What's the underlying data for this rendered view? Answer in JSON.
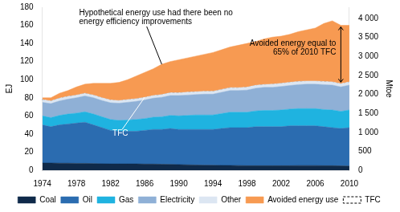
{
  "chart_data": {
    "type": "area",
    "categories": [
      "1974",
      null,
      null,
      null,
      "1978",
      null,
      null,
      null,
      "1982",
      null,
      null,
      null,
      "1986",
      null,
      null,
      null,
      "1990",
      null,
      null,
      null,
      "1994",
      null,
      null,
      null,
      "1998",
      null,
      null,
      null,
      "2002",
      null,
      null,
      null,
      "2006",
      null,
      null,
      null,
      "2010"
    ],
    "series": [
      {
        "name": "Coal",
        "color": "#0f2a4a",
        "values": [
          8,
          8,
          7.8,
          7.8,
          7.6,
          7.6,
          7.4,
          7.2,
          7,
          7,
          7,
          7,
          6.8,
          6.8,
          6.6,
          6.5,
          6.3,
          6,
          5.8,
          5.6,
          5.5,
          5.4,
          5.3,
          5.2,
          5,
          5,
          5,
          5,
          5,
          5,
          5.2,
          5.2,
          5.2,
          5,
          5,
          4.8,
          4.6
        ]
      },
      {
        "name": "Oil",
        "color": "#2b6cb0",
        "values": [
          42,
          40,
          42.2,
          43.2,
          44.4,
          45.4,
          42.6,
          39.8,
          37,
          36,
          36,
          36,
          37.2,
          38.2,
          38.4,
          39.5,
          38.7,
          39,
          39.2,
          39.4,
          39.5,
          40.6,
          41.7,
          41.8,
          42,
          43,
          43,
          43,
          43,
          44,
          43.8,
          43.8,
          43.8,
          43,
          42,
          41.2,
          42.4
        ]
      },
      {
        "name": "Gas",
        "color": "#1fb3e0",
        "values": [
          10,
          10,
          10.5,
          11,
          11,
          11.5,
          12,
          12,
          12,
          12,
          12.5,
          13,
          13,
          13.5,
          14,
          14.5,
          15,
          15.5,
          16,
          16,
          16,
          16.5,
          17,
          17,
          17,
          17.5,
          18,
          18,
          18.5,
          18.5,
          19,
          19,
          19,
          19,
          19.5,
          19,
          19.5
        ]
      },
      {
        "name": "Electricity",
        "color": "#8fb0d6",
        "values": [
          15,
          15.5,
          16,
          16.5,
          17,
          17.5,
          18,
          18,
          18.5,
          19,
          19.5,
          20,
          20.5,
          21,
          21.5,
          22,
          22.5,
          22.5,
          22.5,
          23,
          23,
          23.5,
          24,
          24,
          24.5,
          25,
          25.5,
          25.5,
          26,
          26,
          26.5,
          27,
          27,
          27.5,
          27.5,
          27,
          27.5
        ]
      },
      {
        "name": "Other",
        "color": "#dce6f2",
        "values": [
          3,
          3,
          3,
          3,
          3,
          3,
          3,
          3,
          3,
          3,
          3,
          3,
          3,
          3,
          3,
          3,
          3,
          3.2,
          3.2,
          3.2,
          3.2,
          3.2,
          3.2,
          3.2,
          3.2,
          3.2,
          3.2,
          3.5,
          3.5,
          3.5,
          3.5,
          3.5,
          3.5,
          3.5,
          3.5,
          3.5,
          3.5
        ]
      },
      {
        "name": "Avoided energy use",
        "color": "#f79a52",
        "values": [
          2,
          3.5,
          5.5,
          6.5,
          9,
          10,
          13,
          16,
          18.5,
          20,
          22,
          25,
          27.5,
          29.5,
          33.5,
          34.5,
          36.5,
          37.8,
          39.3,
          40.8,
          42.8,
          43.8,
          44.8,
          46.8,
          48.3,
          48.3,
          50.3,
          52,
          52,
          53,
          55,
          56.5,
          58.5,
          64,
          67.5,
          64.5,
          62.5
        ]
      },
      {
        "name": "TFC",
        "color": "#000000",
        "type": "line",
        "line_style": "dashed",
        "values": [
          78,
          76.5,
          79.5,
          81.5,
          83,
          85,
          83,
          80,
          77.5,
          77,
          78,
          79,
          80.5,
          82.5,
          83.5,
          85.5,
          85.5,
          86.2,
          86.7,
          87.2,
          87.2,
          89.2,
          91.2,
          91.2,
          91.7,
          93.7,
          94.7,
          95,
          96,
          97,
          98,
          98.5,
          98.5,
          98,
          97.5,
          95.5,
          97.5
        ]
      }
    ],
    "stacked": true,
    "ylabel": "EJ",
    "ylim": [
      0,
      180
    ],
    "yticks": [
      0,
      20,
      40,
      60,
      80,
      100,
      120,
      140,
      160,
      180
    ],
    "y2label": "Mtoe",
    "y2lim": [
      0,
      4299
    ],
    "y2ticks": [
      0,
      500,
      {
        "value": 1000,
        "label": "1 000"
      },
      {
        "value": 1500,
        "label": "1 500"
      },
      {
        "value": 2000,
        "label": "2 000"
      },
      {
        "value": 2500,
        "label": "2 500"
      },
      {
        "value": 3000,
        "label": "3 000"
      },
      {
        "value": 3500,
        "label": "3 500"
      },
      {
        "value": 4000,
        "label": "4 000"
      }
    ],
    "annotations": [
      "Hypothetical energy use had there been no energy efficiency improvements",
      "TFC",
      "Avoided energy equal to 65% of 2010 TFC"
    ],
    "grid": false,
    "legend": "bottom"
  }
}
